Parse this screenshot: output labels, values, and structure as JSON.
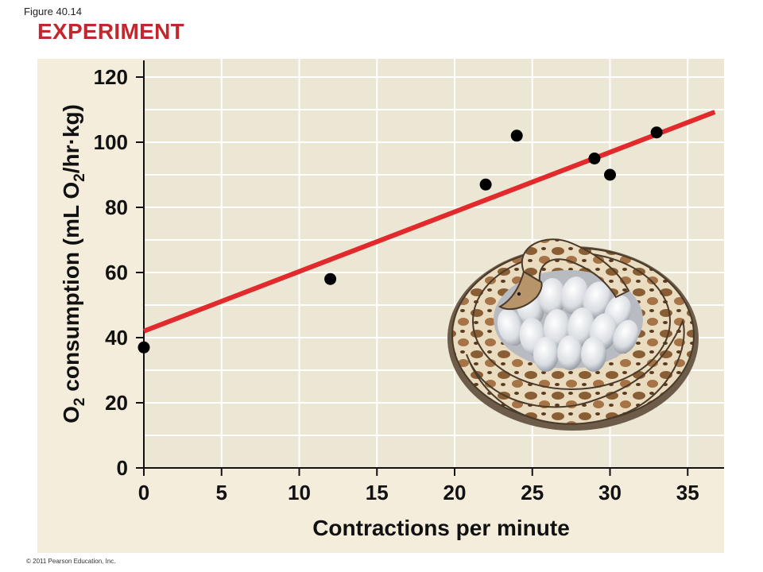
{
  "figure": {
    "label": "Figure 40.14",
    "heading": "EXPERIMENT",
    "copyright": "© 2011 Pearson Education, Inc."
  },
  "colors": {
    "heading": "#c2272d",
    "plot_background": "#ece6d4",
    "panel_background": "#f4eddc",
    "gridline": "#ffffff",
    "trend_line": "#e2292c",
    "points": "#000000"
  },
  "illustration": {
    "icon": "coiled-python-on-eggs-illustration"
  },
  "chart_data": {
    "type": "scatter",
    "xlabel": "Contractions per minute",
    "ylabel_parts": [
      "O",
      "2",
      " consumption (mL O",
      "2",
      "/hr·kg)"
    ],
    "xlim": [
      0,
      37
    ],
    "ylim": [
      0,
      125
    ],
    "xticks": [
      0,
      5,
      10,
      15,
      20,
      25,
      30,
      35
    ],
    "yticks": [
      0,
      20,
      40,
      60,
      80,
      100,
      120
    ],
    "grid": true,
    "legend": "none",
    "points": [
      {
        "x": 0,
        "y": 37
      },
      {
        "x": 12,
        "y": 58
      },
      {
        "x": 22,
        "y": 87
      },
      {
        "x": 24,
        "y": 102
      },
      {
        "x": 29,
        "y": 95
      },
      {
        "x": 30,
        "y": 90
      },
      {
        "x": 33,
        "y": 103
      }
    ],
    "trend_line": {
      "x": [
        0,
        37
      ],
      "y": [
        42,
        110
      ]
    }
  }
}
